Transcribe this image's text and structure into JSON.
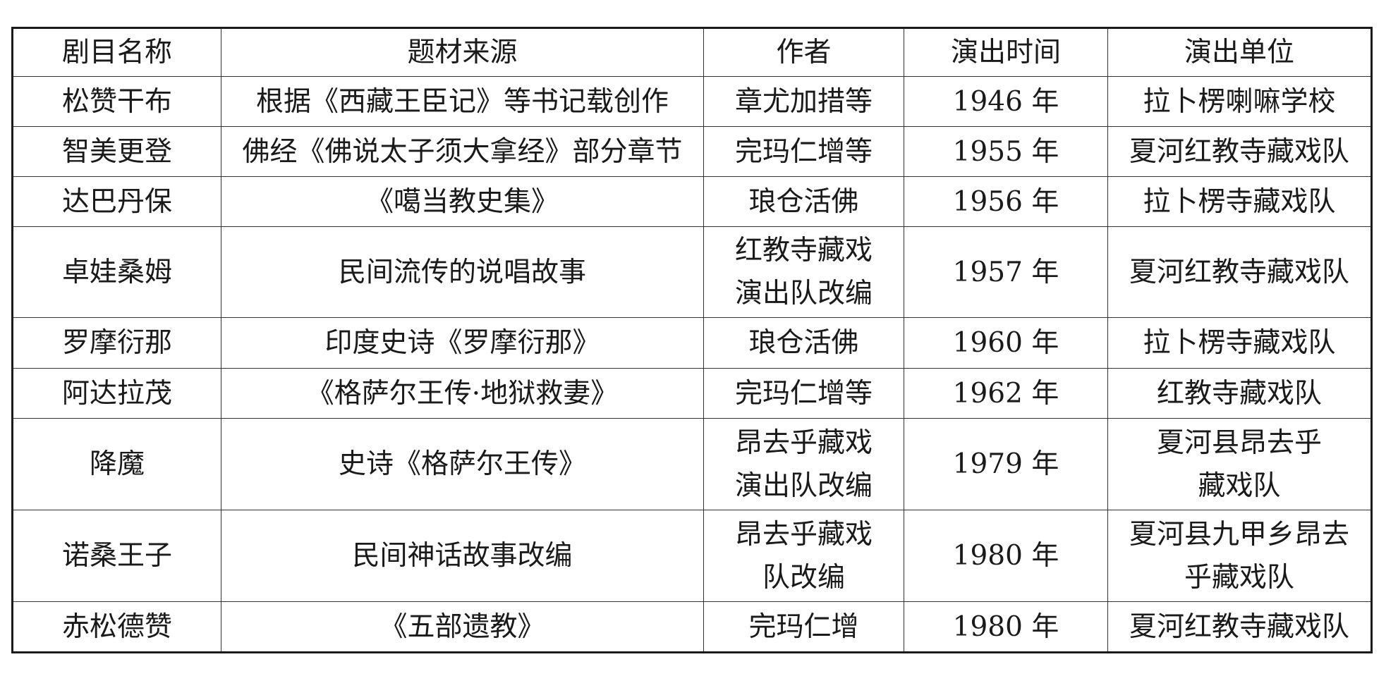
{
  "table": {
    "headers": [
      "剧目名称",
      "题材来源",
      "作者",
      "演出时间",
      "演出单位"
    ],
    "rows": [
      [
        "松赞干布",
        "根据《西藏王臣记》等书记载创作",
        "章尤加措等",
        "1946 年",
        "拉卜楞喇嘛学校"
      ],
      [
        "智美更登",
        "佛经《佛说太子须大拿经》部分章节",
        "完玛仁增等",
        "1955 年",
        "夏河红教寺藏戏队"
      ],
      [
        "达巴丹保",
        "《噶当教史集》",
        "琅仓活佛",
        "1956 年",
        "拉卜楞寺藏戏队"
      ],
      [
        "卓娃桑姆",
        "民间流传的说唱故事",
        "红教寺藏戏\n演出队改编",
        "1957 年",
        "夏河红教寺藏戏队"
      ],
      [
        "罗摩衍那",
        "印度史诗《罗摩衍那》",
        "琅仓活佛",
        "1960 年",
        "拉卜楞寺藏戏队"
      ],
      [
        "阿达拉茂",
        "《格萨尔王传·地狱救妻》",
        "完玛仁增等",
        "1962 年",
        "红教寺藏戏队"
      ],
      [
        "降魔",
        "史诗《格萨尔王传》",
        "昂去乎藏戏\n演出队改编",
        "1979 年",
        "夏河县昂去乎\n藏戏队"
      ],
      [
        "诺桑王子",
        "民间神话故事改编",
        "昂去乎藏戏\n队改编",
        "1980 年",
        "夏河县九甲乡昂去\n乎藏戏队"
      ],
      [
        "赤松德赞",
        "《五部遗教》",
        "完玛仁增",
        "1980 年",
        "夏河红教寺藏戏队"
      ]
    ]
  }
}
